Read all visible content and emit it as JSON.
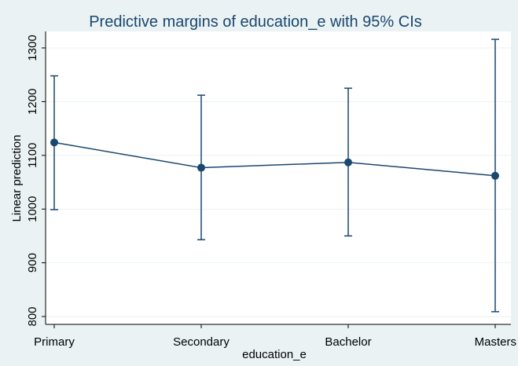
{
  "chart_data": {
    "type": "line",
    "title": "Predictive margins of education_e with 95% CIs",
    "xlabel": "education_e",
    "ylabel": "Linear prediction",
    "categories": [
      "Primary",
      "Secondary",
      "Bachelor",
      "Masters"
    ],
    "values": [
      1124,
      1077,
      1087,
      1062
    ],
    "ci_lower": [
      999,
      943,
      950,
      809
    ],
    "ci_upper": [
      1248,
      1212,
      1225,
      1316
    ],
    "ylim": [
      800,
      1300
    ],
    "yticks": [
      800,
      900,
      1000,
      1100,
      1200,
      1300
    ],
    "grid": true,
    "legend": "none",
    "colors": {
      "series": "#1a476f",
      "grid": "#eaf2f3",
      "plot_background": "#ffffff",
      "page_background": "#eaf2f3"
    }
  }
}
